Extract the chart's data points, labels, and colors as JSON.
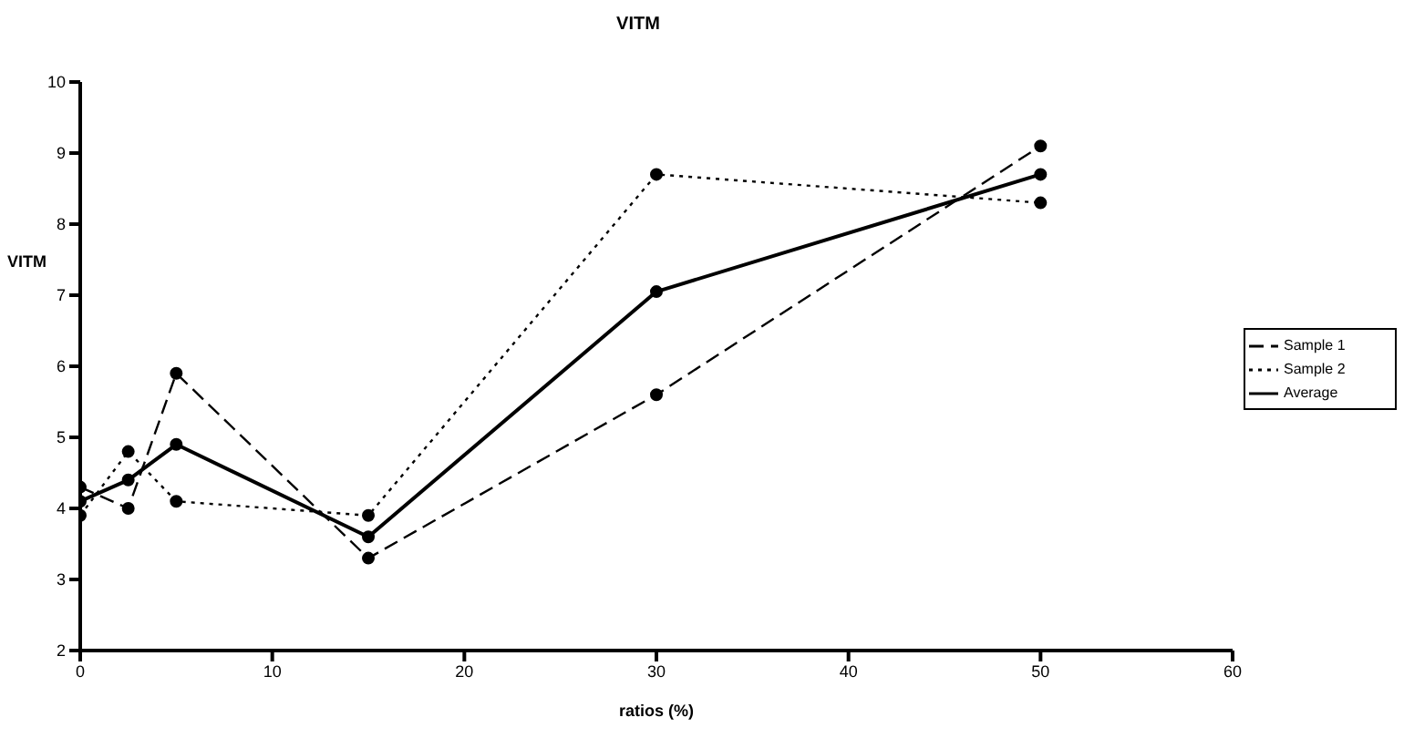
{
  "chart_data": {
    "type": "line",
    "title": "VITM",
    "xlabel": "ratios (%)",
    "ylabel": "VITM",
    "x": [
      0,
      2.5,
      5,
      15,
      30,
      50
    ],
    "series": [
      {
        "name": "Sample 1",
        "color": "#000000",
        "line_style": "dashed",
        "values": [
          4.3,
          4.0,
          5.9,
          3.3,
          5.6,
          9.1
        ]
      },
      {
        "name": "Sample 2",
        "color": "#000000",
        "line_style": "dotted",
        "values": [
          3.9,
          4.8,
          4.1,
          3.9,
          8.7,
          8.3
        ]
      },
      {
        "name": "Average",
        "color": "#000000",
        "line_style": "solid",
        "values": [
          4.1,
          4.4,
          4.9,
          3.6,
          7.05,
          8.7
        ]
      }
    ],
    "xlim": [
      0,
      60
    ],
    "xticks": [
      0,
      10,
      20,
      30,
      40,
      50,
      60
    ],
    "ylim": [
      2,
      10
    ],
    "yticks": [
      2,
      3,
      4,
      5,
      6,
      7,
      8,
      9,
      10
    ],
    "grid": false,
    "legend": "right",
    "marker": "circle"
  }
}
